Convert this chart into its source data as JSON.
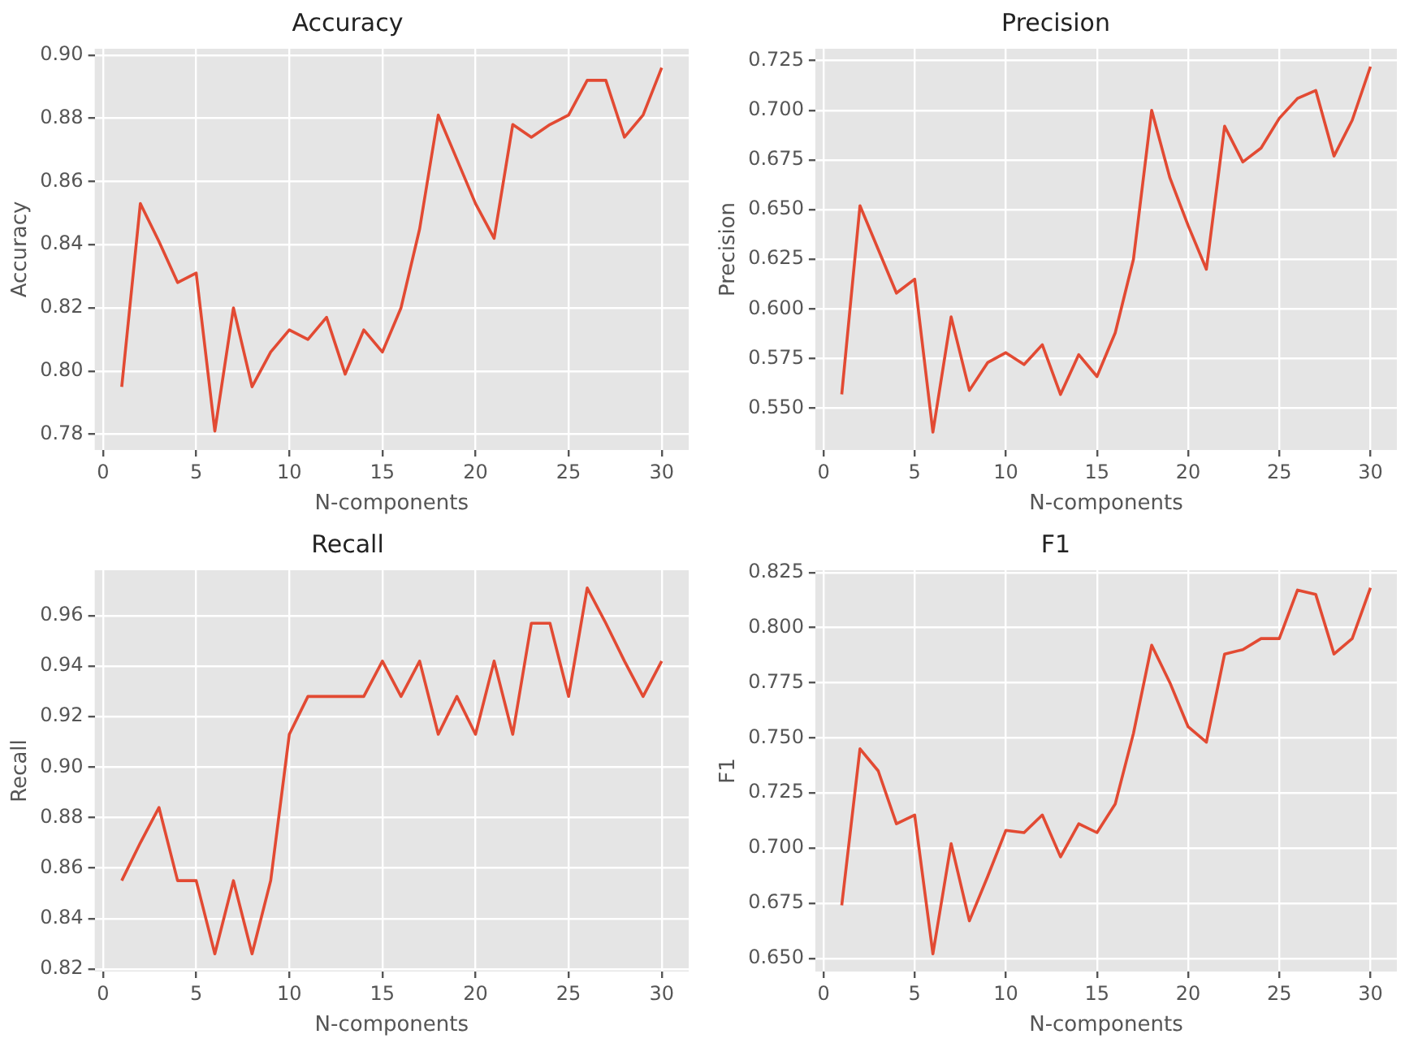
{
  "chart_data": [
    {
      "type": "line",
      "title": "Accuracy",
      "xlabel": "N-components",
      "ylabel": "Accuracy",
      "x": [
        1,
        2,
        3,
        4,
        5,
        6,
        7,
        8,
        9,
        10,
        11,
        12,
        13,
        14,
        15,
        16,
        17,
        18,
        19,
        20,
        21,
        22,
        23,
        24,
        25,
        26,
        27,
        28,
        29,
        30
      ],
      "series": [
        {
          "color": "#e24a33",
          "values": [
            0.795,
            0.853,
            0.841,
            0.828,
            0.831,
            0.781,
            0.82,
            0.795,
            0.806,
            0.813,
            0.81,
            0.817,
            0.799,
            0.813,
            0.806,
            0.82,
            0.845,
            0.881,
            0.867,
            0.853,
            0.842,
            0.878,
            0.874,
            0.878,
            0.881,
            0.892,
            0.892,
            0.874,
            0.881,
            0.896
          ]
        }
      ],
      "xlim": [
        -0.45,
        31.45
      ],
      "xticks": [
        0,
        5,
        10,
        15,
        20,
        25,
        30
      ],
      "ylim": [
        0.775,
        0.902
      ],
      "yticks": [
        {
          "value": 0.78,
          "label": "0.78"
        },
        {
          "value": 0.8,
          "label": "0.80"
        },
        {
          "value": 0.82,
          "label": "0.82"
        },
        {
          "value": 0.84,
          "label": "0.84"
        },
        {
          "value": 0.86,
          "label": "0.86"
        },
        {
          "value": 0.88,
          "label": "0.88"
        },
        {
          "value": 0.9,
          "label": "0.90"
        }
      ],
      "grid": true,
      "legend": false,
      "marker": "none",
      "line_style": "solid"
    },
    {
      "type": "line",
      "title": "Precision",
      "xlabel": "N-components",
      "ylabel": "Precision",
      "x": [
        1,
        2,
        3,
        4,
        5,
        6,
        7,
        8,
        9,
        10,
        11,
        12,
        13,
        14,
        15,
        16,
        17,
        18,
        19,
        20,
        21,
        22,
        23,
        24,
        25,
        26,
        27,
        28,
        29,
        30
      ],
      "series": [
        {
          "color": "#e24a33",
          "values": [
            0.557,
            0.652,
            0.63,
            0.608,
            0.615,
            0.538,
            0.596,
            0.559,
            0.573,
            0.578,
            0.572,
            0.582,
            0.557,
            0.577,
            0.566,
            0.588,
            0.625,
            0.7,
            0.666,
            0.642,
            0.62,
            0.692,
            0.674,
            0.681,
            0.696,
            0.706,
            0.71,
            0.677,
            0.695,
            0.722
          ]
        }
      ],
      "xlim": [
        -0.45,
        31.45
      ],
      "xticks": [
        0,
        5,
        10,
        15,
        20,
        25,
        30
      ],
      "ylim": [
        0.529,
        0.731
      ],
      "yticks": [
        {
          "value": 0.55,
          "label": "0.550"
        },
        {
          "value": 0.575,
          "label": "0.575"
        },
        {
          "value": 0.6,
          "label": "0.600"
        },
        {
          "value": 0.625,
          "label": "0.625"
        },
        {
          "value": 0.65,
          "label": "0.650"
        },
        {
          "value": 0.675,
          "label": "0.675"
        },
        {
          "value": 0.7,
          "label": "0.700"
        },
        {
          "value": 0.725,
          "label": "0.725"
        }
      ],
      "grid": true,
      "legend": false,
      "marker": "none",
      "line_style": "solid"
    },
    {
      "type": "line",
      "title": "Recall",
      "xlabel": "N-components",
      "ylabel": "Recall",
      "x": [
        1,
        2,
        3,
        4,
        5,
        6,
        7,
        8,
        9,
        10,
        11,
        12,
        13,
        14,
        15,
        16,
        17,
        18,
        19,
        20,
        21,
        22,
        23,
        24,
        25,
        26,
        27,
        28,
        29,
        30
      ],
      "series": [
        {
          "color": "#e24a33",
          "values": [
            0.855,
            0.87,
            0.884,
            0.855,
            0.855,
            0.826,
            0.855,
            0.826,
            0.855,
            0.913,
            0.928,
            0.928,
            0.928,
            0.928,
            0.942,
            0.928,
            0.942,
            0.913,
            0.928,
            0.913,
            0.942,
            0.913,
            0.957,
            0.957,
            0.928,
            0.971,
            0.957,
            0.942,
            0.928,
            0.942
          ]
        }
      ],
      "xlim": [
        -0.45,
        31.45
      ],
      "xticks": [
        0,
        5,
        10,
        15,
        20,
        25,
        30
      ],
      "ylim": [
        0.819,
        0.978
      ],
      "yticks": [
        {
          "value": 0.82,
          "label": "0.82"
        },
        {
          "value": 0.84,
          "label": "0.84"
        },
        {
          "value": 0.86,
          "label": "0.86"
        },
        {
          "value": 0.88,
          "label": "0.88"
        },
        {
          "value": 0.9,
          "label": "0.90"
        },
        {
          "value": 0.92,
          "label": "0.92"
        },
        {
          "value": 0.94,
          "label": "0.94"
        },
        {
          "value": 0.96,
          "label": "0.96"
        }
      ],
      "grid": true,
      "legend": false,
      "marker": "none",
      "line_style": "solid"
    },
    {
      "type": "line",
      "title": "F1",
      "xlabel": "N-components",
      "ylabel": "F1",
      "x": [
        1,
        2,
        3,
        4,
        5,
        6,
        7,
        8,
        9,
        10,
        11,
        12,
        13,
        14,
        15,
        16,
        17,
        18,
        19,
        20,
        21,
        22,
        23,
        24,
        25,
        26,
        27,
        28,
        29,
        30
      ],
      "series": [
        {
          "color": "#e24a33",
          "values": [
            0.674,
            0.745,
            0.735,
            0.711,
            0.715,
            0.652,
            0.702,
            0.667,
            0.687,
            0.708,
            0.707,
            0.715,
            0.696,
            0.711,
            0.707,
            0.72,
            0.752,
            0.792,
            0.775,
            0.755,
            0.748,
            0.788,
            0.79,
            0.795,
            0.795,
            0.817,
            0.815,
            0.788,
            0.795,
            0.818
          ]
        }
      ],
      "xlim": [
        -0.45,
        31.45
      ],
      "xticks": [
        0,
        5,
        10,
        15,
        20,
        25,
        30
      ],
      "ylim": [
        0.644,
        0.826
      ],
      "yticks": [
        {
          "value": 0.65,
          "label": "0.650"
        },
        {
          "value": 0.675,
          "label": "0.675"
        },
        {
          "value": 0.7,
          "label": "0.700"
        },
        {
          "value": 0.725,
          "label": "0.725"
        },
        {
          "value": 0.75,
          "label": "0.750"
        },
        {
          "value": 0.775,
          "label": "0.775"
        },
        {
          "value": 0.8,
          "label": "0.800"
        },
        {
          "value": 0.825,
          "label": "0.825"
        }
      ],
      "grid": true,
      "legend": false,
      "marker": "none",
      "line_style": "solid"
    }
  ]
}
